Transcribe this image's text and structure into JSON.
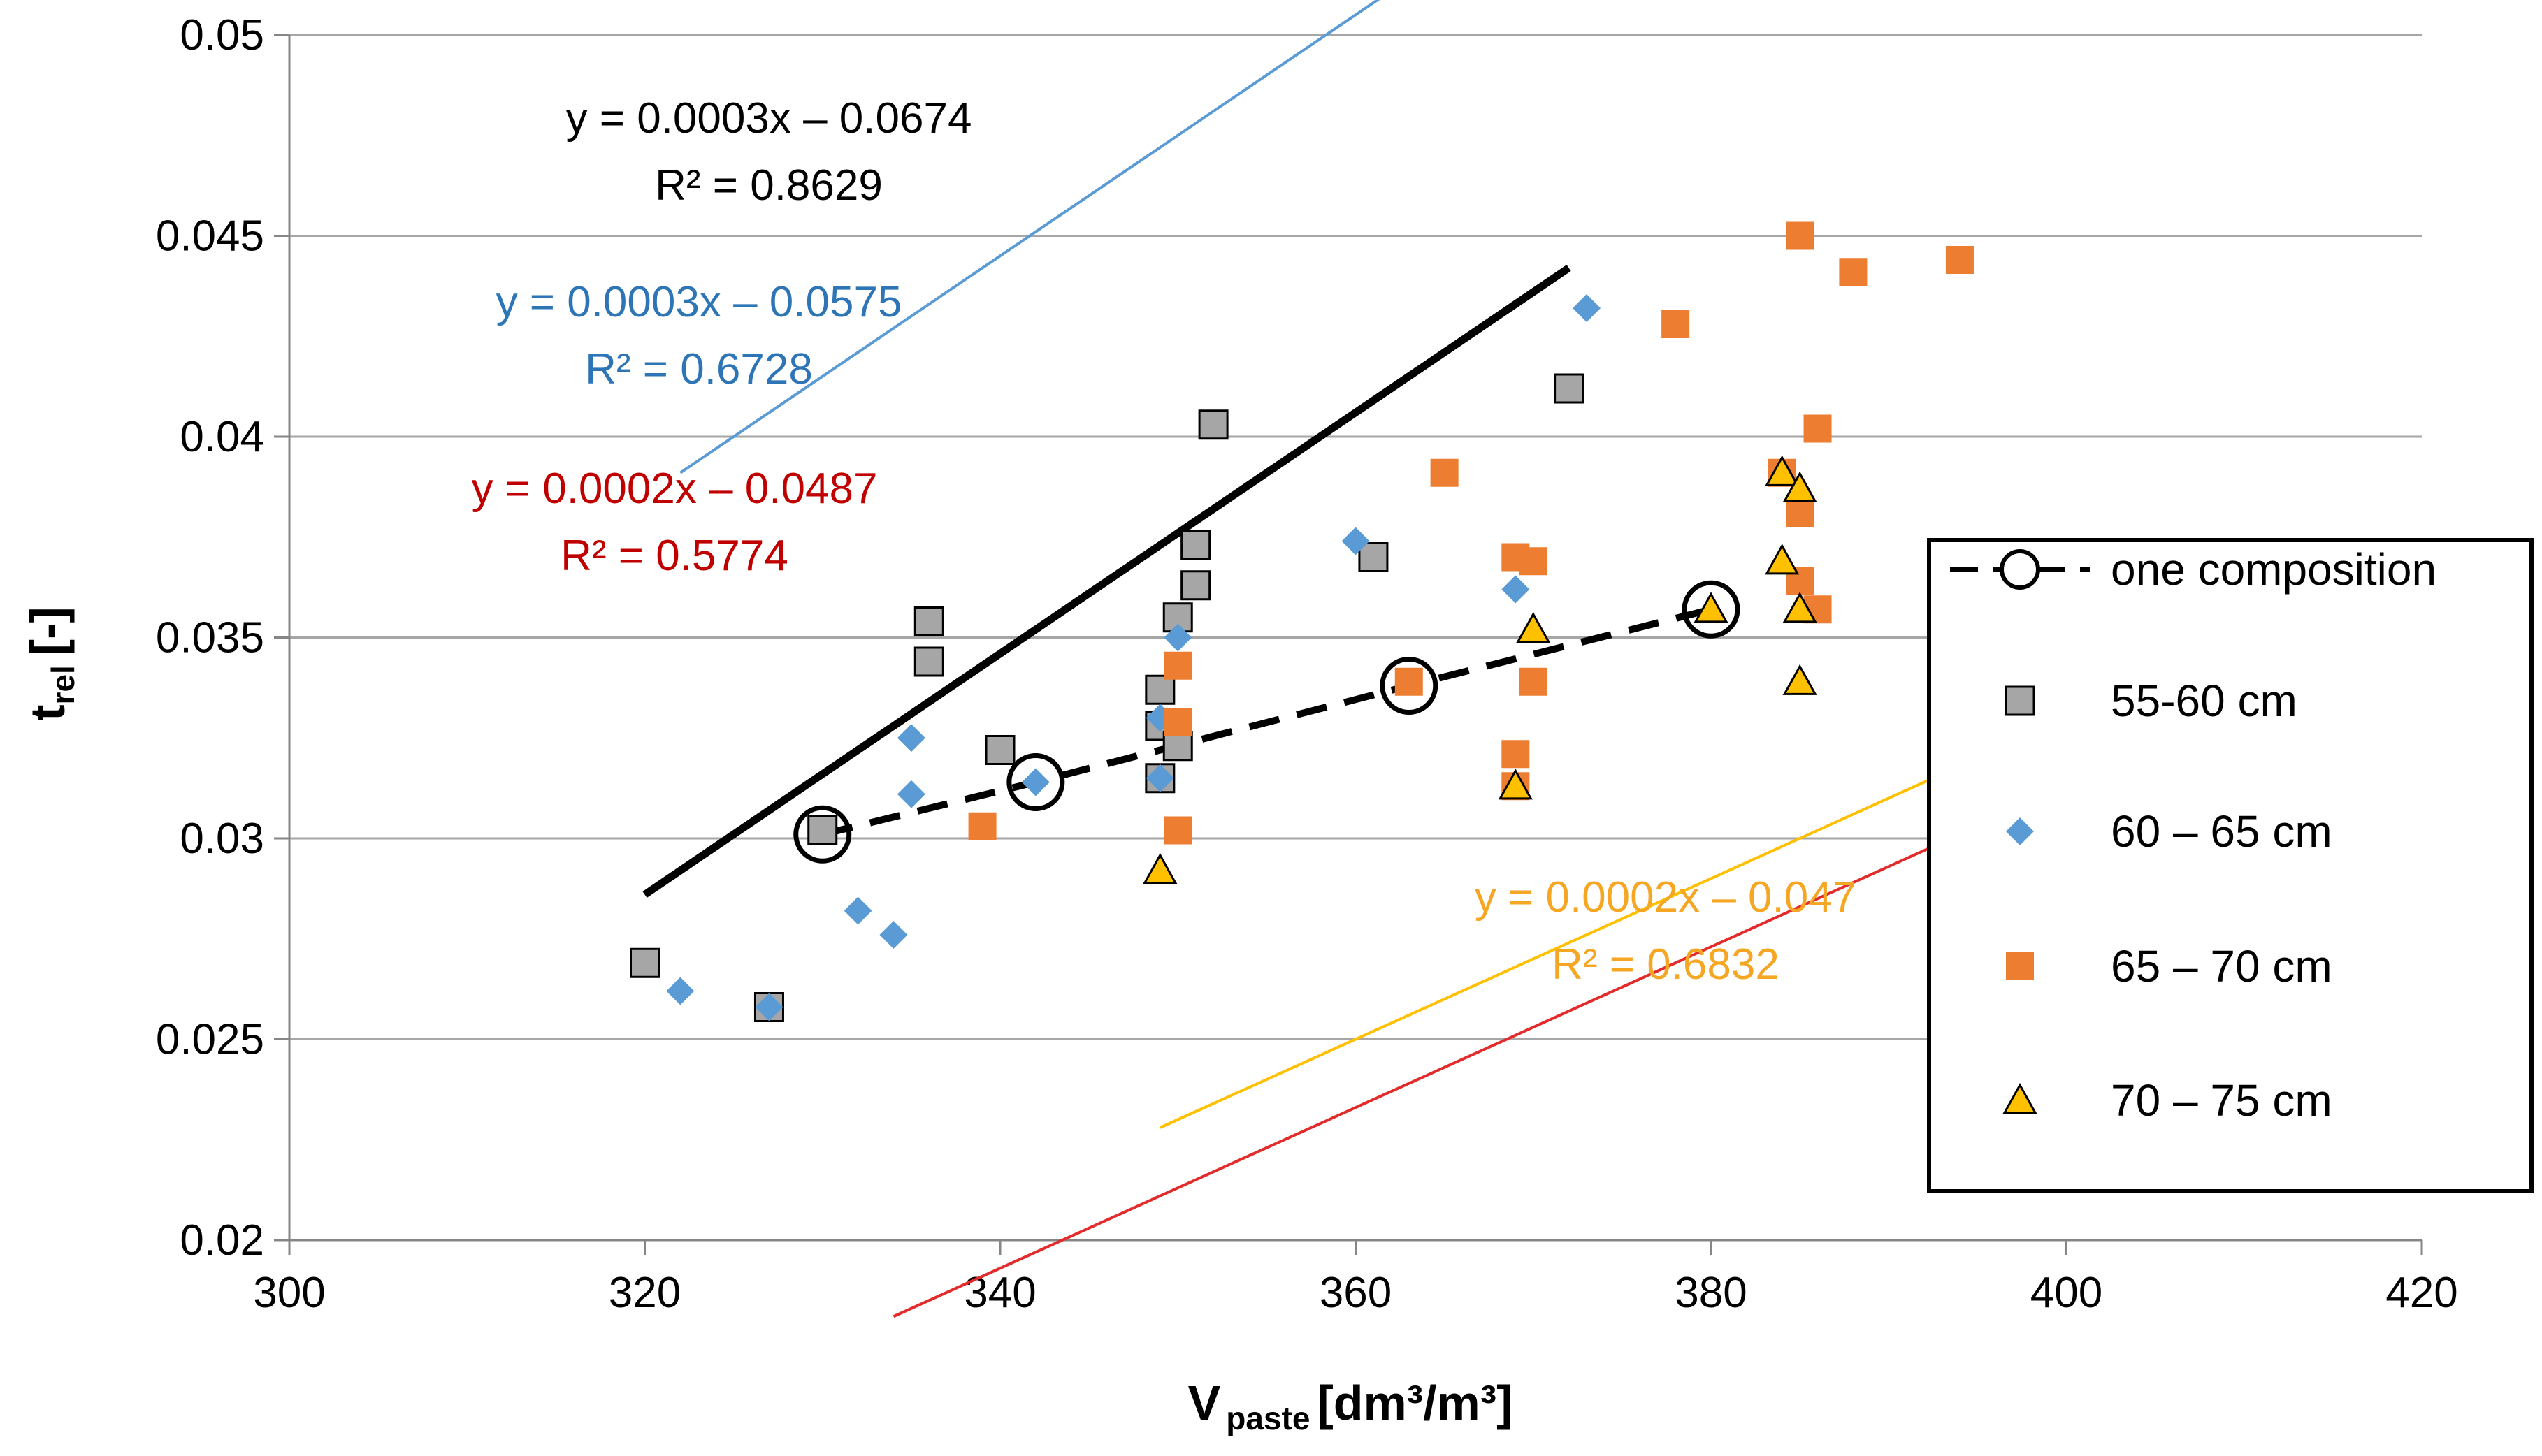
{
  "chart_data": {
    "type": "scatter",
    "title": "",
    "x_axis": {
      "label_main": "V",
      "label_sub": "paste",
      "label_unit": "[dm³/m³]",
      "min": 300,
      "max": 420,
      "step": 20
    },
    "y_axis": {
      "label_main": "t",
      "label_sub": "rel",
      "label_unit": "[-]",
      "min": 0.02,
      "max": 0.05,
      "step": 0.005
    },
    "grid": "horizontal",
    "legend_position": "right",
    "series": [
      {
        "name": "one composition",
        "marker": "circle-open",
        "line": "dashed",
        "color": "#000000",
        "points": [
          [
            330,
            0.0301
          ],
          [
            342,
            0.0314
          ],
          [
            363,
            0.0338
          ],
          [
            380,
            0.0357
          ]
        ]
      },
      {
        "name": "55-60 cm",
        "marker": "square",
        "color": "#a6a6a6",
        "stroke": "#000000",
        "points": [
          [
            320,
            0.0269
          ],
          [
            327,
            0.0258
          ],
          [
            330,
            0.0302
          ],
          [
            336,
            0.0354
          ],
          [
            336,
            0.0344
          ],
          [
            340,
            0.0322
          ],
          [
            349,
            0.0337
          ],
          [
            349,
            0.0328
          ],
          [
            349,
            0.0315
          ],
          [
            350,
            0.0355
          ],
          [
            350,
            0.0323
          ],
          [
            351,
            0.0373
          ],
          [
            351,
            0.0363
          ],
          [
            352,
            0.0403
          ],
          [
            361,
            0.037
          ],
          [
            372,
            0.0412
          ]
        ],
        "trendline": {
          "slope": 0.0003,
          "intercept": -0.0674,
          "x_range": [
            320,
            372
          ],
          "color": "#000000",
          "label": [
            "y = 0.0003x – 0.0674",
            "R² = 0.8629"
          ]
        }
      },
      {
        "name": "60 – 65 cm",
        "marker": "diamond",
        "color": "#5b9bd5",
        "points": [
          [
            322,
            0.0262
          ],
          [
            327,
            0.0258
          ],
          [
            332,
            0.0282
          ],
          [
            334,
            0.0276
          ],
          [
            335,
            0.0325
          ],
          [
            335,
            0.0311
          ],
          [
            342,
            0.0314
          ],
          [
            349,
            0.033
          ],
          [
            349,
            0.0315
          ],
          [
            350,
            0.035
          ],
          [
            360,
            0.0374
          ],
          [
            369,
            0.0362
          ],
          [
            373,
            0.0432
          ]
        ],
        "trendline": {
          "slope": 0.0003,
          "intercept": -0.0575,
          "x_range": [
            322,
            373
          ],
          "color": "#5b9bd5",
          "label": [
            "y = 0.0003x – 0.0575",
            "R² = 0.6728"
          ]
        }
      },
      {
        "name": "65 – 70 cm",
        "marker": "square",
        "color": "#ed7d31",
        "points": [
          [
            339,
            0.0303
          ],
          [
            350,
            0.0343
          ],
          [
            350,
            0.0329
          ],
          [
            350,
            0.0302
          ],
          [
            363,
            0.0339
          ],
          [
            365,
            0.0391
          ],
          [
            369,
            0.037
          ],
          [
            369,
            0.0321
          ],
          [
            369,
            0.0313
          ],
          [
            370,
            0.0369
          ],
          [
            370,
            0.0339
          ],
          [
            378,
            0.0428
          ],
          [
            384,
            0.0391
          ],
          [
            385,
            0.045
          ],
          [
            385,
            0.0381
          ],
          [
            385,
            0.0364
          ],
          [
            386,
            0.0402
          ],
          [
            386,
            0.0357
          ],
          [
            388,
            0.0441
          ],
          [
            394,
            0.0444
          ]
        ],
        "trendline": {
          "slope": 0.0002,
          "intercept": -0.0487,
          "x_range": [
            334,
            394
          ],
          "color": "#e32b2b",
          "label": [
            "y = 0.0002x – 0.0487",
            "R² = 0.5774"
          ]
        }
      },
      {
        "name": "70 – 75 cm",
        "marker": "triangle",
        "color": "#ffc000",
        "stroke": "#000000",
        "points": [
          [
            349,
            0.0292
          ],
          [
            369,
            0.0313
          ],
          [
            370,
            0.0352
          ],
          [
            380,
            0.0357
          ],
          [
            384,
            0.0391
          ],
          [
            384,
            0.0369
          ],
          [
            385,
            0.0387
          ],
          [
            385,
            0.0357
          ],
          [
            385,
            0.0339
          ]
        ],
        "trendline": {
          "slope": 0.0002,
          "intercept": -0.047,
          "x_range": [
            349,
            411
          ],
          "color": "#ffc000",
          "label": [
            "y = 0.0002x – 0.047",
            "R² = 0.6832"
          ]
        }
      }
    ],
    "annotation_colors": {
      "black": "#000000",
      "blue": "#2e75b6",
      "red": "#c00000",
      "orange": "#f5a623"
    }
  }
}
